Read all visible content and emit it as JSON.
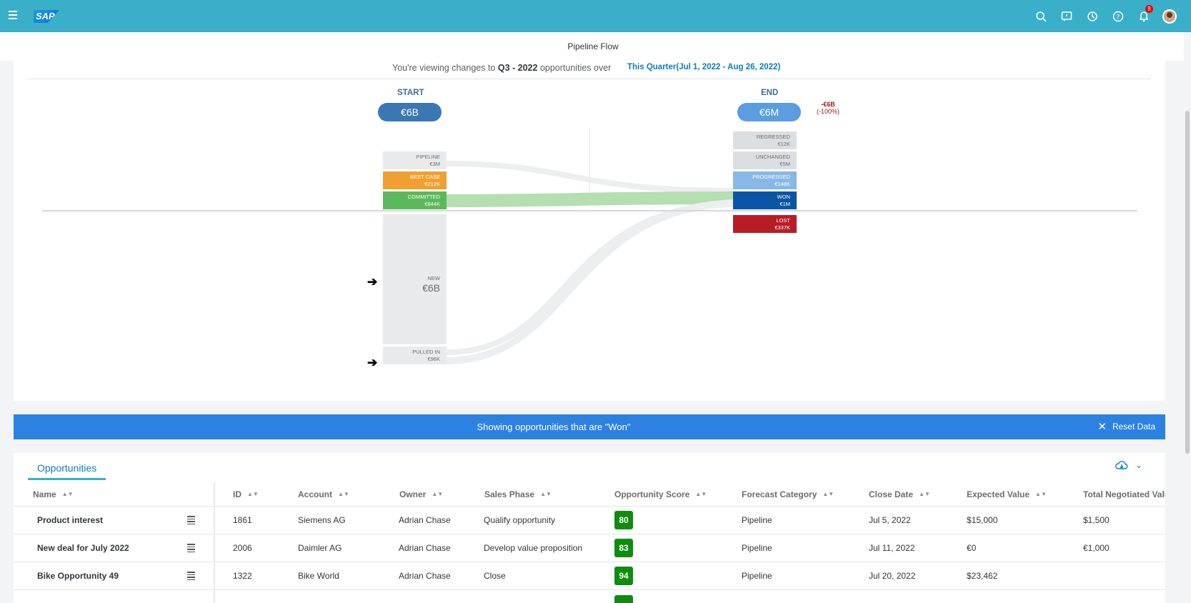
{
  "shell": {
    "logo": "SAP",
    "notifications_count": "9"
  },
  "page": {
    "title": "Pipeline Flow",
    "viewing_prefix": "You're viewing changes to",
    "viewing_period": "Q3 - 2022",
    "viewing_suffix": "opportunities over",
    "quarter_link": "This Quarter(Jul 1, 2022 - Aug 26, 2022)"
  },
  "flow": {
    "start_label": "START",
    "start_value": "€6B",
    "end_label": "END",
    "end_value": "€6M",
    "delta_value": "-€6B",
    "delta_pct": "(-100%)",
    "start_nodes": [
      {
        "label": "PIPELINE",
        "value": "€3M"
      },
      {
        "label": "BEST CASE",
        "value": "€212K"
      },
      {
        "label": "COMMITTED",
        "value": "€844K"
      },
      {
        "label": "NEW",
        "value": "€6B"
      },
      {
        "label": "PULLED IN",
        "value": "€96K"
      }
    ],
    "end_nodes": [
      {
        "label": "REGRESSED",
        "value": "€12K"
      },
      {
        "label": "UNCHANGED",
        "value": "€5M"
      },
      {
        "label": "PROGRESSED",
        "value": "€148K"
      },
      {
        "label": "WON",
        "value": "€1M"
      },
      {
        "label": "LOST",
        "value": "€337K"
      }
    ],
    "colors": {
      "pipeline": "#e8eaec",
      "best_case": "#f0a030",
      "committed": "#5cb85c",
      "won": "#0a56a4",
      "progressed": "#88b8e6",
      "lost": "#b81c25",
      "pill_start": "#3b77b0",
      "pill_end": "#5a9de0"
    }
  },
  "banner": {
    "message": "Showing opportunities that are \"Won\"",
    "reset_label": "Reset Data"
  },
  "table": {
    "tab_label": "Opportunities",
    "columns": [
      "Name",
      "ID",
      "Account",
      "Owner",
      "Sales Phase",
      "Opportunity Score",
      "Forecast Category",
      "Close Date",
      "Expected Value",
      "Total Negotiated Value"
    ],
    "rows": [
      {
        "name": "Product interest",
        "id": "1861",
        "account": "Siemens AG",
        "owner": "Adrian Chase",
        "phase": "Qualify opportunity",
        "score": "80",
        "forecast": "Pipeline",
        "close": "Jul 5, 2022",
        "expected": "$15,000",
        "negotiated": "$1,500"
      },
      {
        "name": "New deal for July 2022",
        "id": "2006",
        "account": "Daimler AG",
        "owner": "Adrian Chase",
        "phase": "Develop value proposition",
        "score": "83",
        "forecast": "Pipeline",
        "close": "Jul 11, 2022",
        "expected": "€0",
        "negotiated": "€1,000"
      },
      {
        "name": "Bike Opportunity 49",
        "id": "1322",
        "account": "Bike World",
        "owner": "Adrian Chase",
        "phase": "Close",
        "score": "94",
        "forecast": "Pipeline",
        "close": "Jul 20, 2022",
        "expected": "$23,462",
        "negotiated": ""
      }
    ]
  }
}
